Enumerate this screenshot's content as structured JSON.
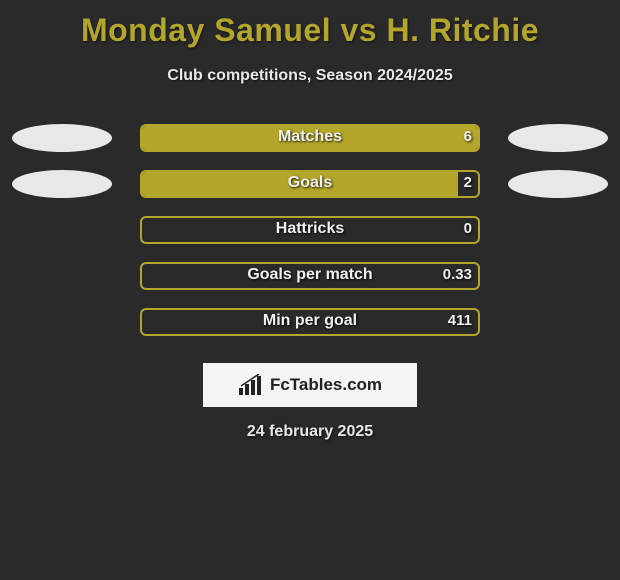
{
  "header": {
    "title": "Monday Samuel vs H. Ritchie",
    "title_color": "#b3a62a",
    "title_fontsize": 32,
    "subtitle": "Club competitions, Season 2024/2025",
    "subtitle_color": "#e8e8e8",
    "subtitle_fontsize": 16
  },
  "chart": {
    "type": "horizontal-bar-comparison",
    "background_color": "#2a2a2a",
    "bar_track_width": 340,
    "bar_track_height": 28,
    "bar_border_radius": 6,
    "ellipse_color": "#e8e8e8",
    "ellipse_width": 100,
    "ellipse_height": 28,
    "label_color": "#f0f0f0",
    "label_fontsize": 16,
    "value_color": "#f0f0f0",
    "value_fontsize": 15,
    "rows": [
      {
        "label": "Matches",
        "value_right": "6",
        "fill_pct": 100,
        "fill_color": "#b3a62a",
        "border_color": "#b3a62a",
        "show_ellipse_left": true,
        "show_ellipse_right": true
      },
      {
        "label": "Goals",
        "value_right": "2",
        "fill_pct": 94,
        "fill_color": "#b3a62a",
        "border_color": "#b3a62a",
        "show_ellipse_left": true,
        "show_ellipse_right": true
      },
      {
        "label": "Hattricks",
        "value_right": "0",
        "fill_pct": 0,
        "fill_color": "#b3a62a",
        "border_color": "#b3a62a",
        "show_ellipse_left": false,
        "show_ellipse_right": false
      },
      {
        "label": "Goals per match",
        "value_right": "0.33",
        "fill_pct": 0,
        "fill_color": "#b3a62a",
        "border_color": "#b3a62a",
        "show_ellipse_left": false,
        "show_ellipse_right": false
      },
      {
        "label": "Min per goal",
        "value_right": "411",
        "fill_pct": 0,
        "fill_color": "#b3a62a",
        "border_color": "#b3a62a",
        "show_ellipse_left": false,
        "show_ellipse_right": false
      }
    ]
  },
  "footer": {
    "logo_text": "FcTables.com",
    "logo_box_bg": "#f4f4f4",
    "logo_text_color": "#222222",
    "date": "24 february 2025",
    "date_color": "#e8e8e8",
    "date_fontsize": 16
  }
}
